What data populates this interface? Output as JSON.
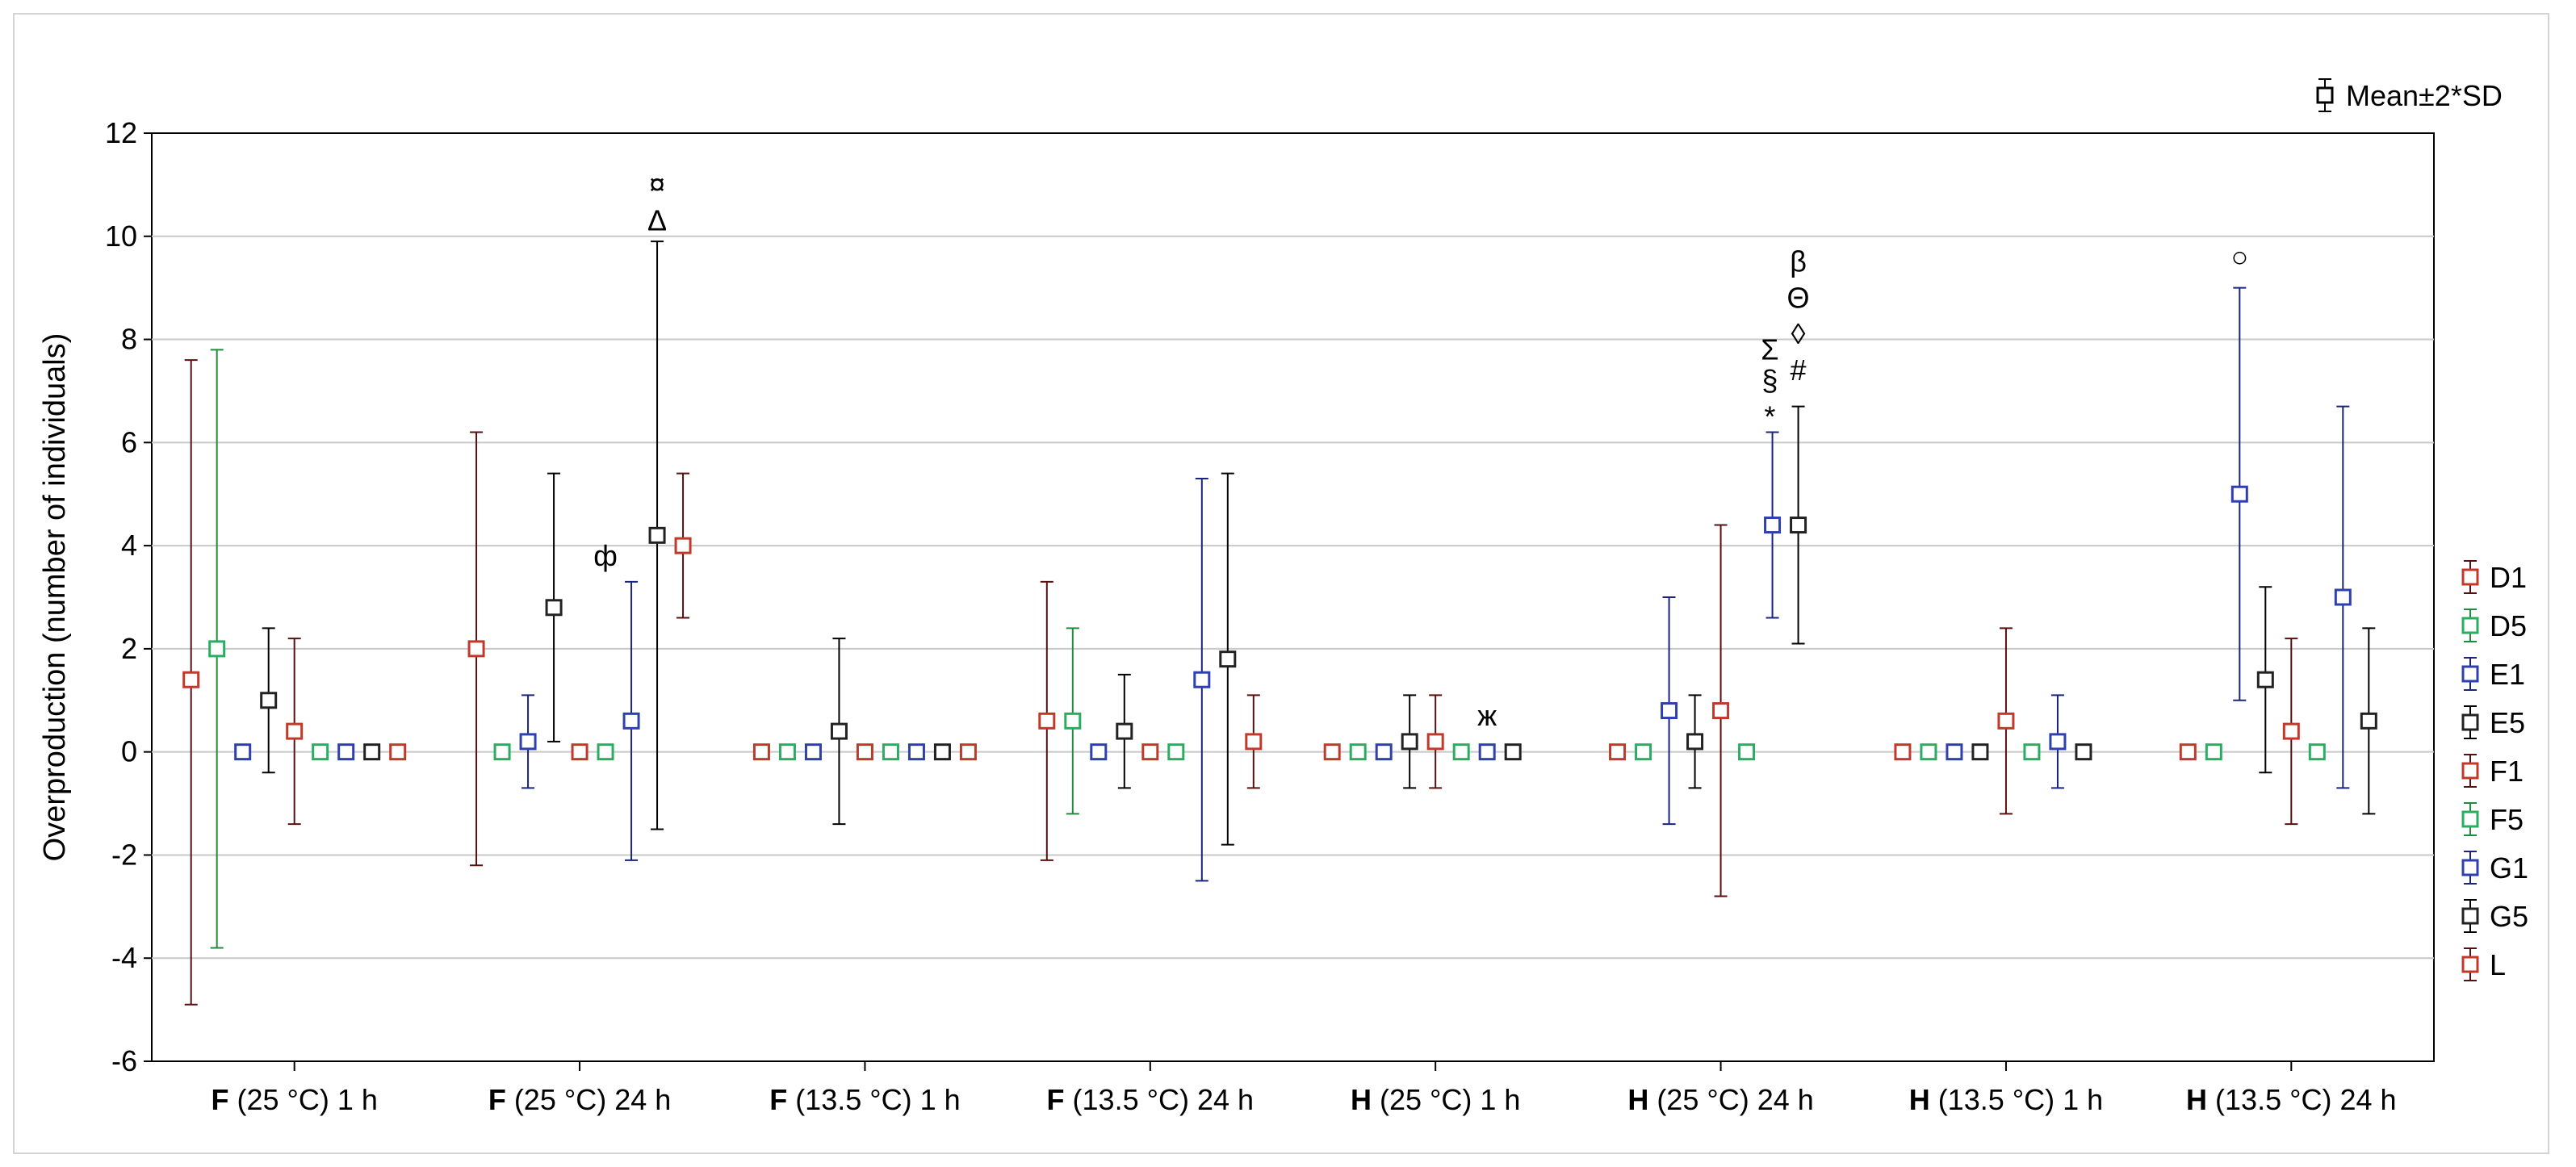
{
  "chart_data": {
    "type": "scatter",
    "title": "",
    "ylabel": "Overproduction (number of individuals)",
    "xlabel": "",
    "ylim": [
      -6,
      12
    ],
    "yticks": [
      -6,
      -4,
      -2,
      0,
      2,
      4,
      6,
      8,
      10,
      12
    ],
    "grid": "horizontal",
    "errorbar_label": "Mean±2*SD",
    "legend_placement": "right",
    "categories": [
      {
        "bold": "F",
        "rest": " (25 °C) 1 h"
      },
      {
        "bold": "F",
        "rest": " (25 °C) 24 h"
      },
      {
        "bold": "F",
        "rest": " (13.5 °C) 1 h"
      },
      {
        "bold": "F",
        "rest": " (13.5 °C) 24 h"
      },
      {
        "bold": "H",
        "rest": " (25 °C) 1 h"
      },
      {
        "bold": "H",
        "rest": " (25 °C) 24 h"
      },
      {
        "bold": "H",
        "rest": " (13.5 °C) 1 h"
      },
      {
        "bold": "H",
        "rest": " (13.5 °C) 24 h"
      }
    ],
    "series": [
      {
        "name": "D1",
        "color": "#c0392b",
        "bar_color": "#5a0f0f",
        "mean": [
          1.4,
          2.0,
          0,
          0.6,
          0,
          0,
          0,
          0
        ],
        "low": [
          -4.9,
          -2.2,
          null,
          -2.1,
          null,
          null,
          null,
          null
        ],
        "high": [
          7.6,
          6.2,
          null,
          3.3,
          null,
          null,
          null,
          null
        ]
      },
      {
        "name": "D5",
        "color": "#27ae60",
        "bar_color": "#1e8c3a",
        "mean": [
          2.0,
          0,
          0,
          0.6,
          0,
          0,
          0,
          0
        ],
        "low": [
          -3.8,
          null,
          null,
          -1.2,
          null,
          null,
          null,
          null
        ],
        "high": [
          7.8,
          null,
          null,
          2.4,
          null,
          null,
          null,
          null
        ]
      },
      {
        "name": "E1",
        "color": "#2e3fb0",
        "bar_color": "#1a237e",
        "mean": [
          0,
          0.2,
          0,
          0,
          0,
          0.8,
          0,
          5.0
        ],
        "low": [
          null,
          -0.7,
          null,
          null,
          null,
          -1.4,
          null,
          1.0
        ],
        "high": [
          null,
          1.1,
          null,
          null,
          null,
          3.0,
          null,
          9.0
        ]
      },
      {
        "name": "E5",
        "color": "#222222",
        "bar_color": "#000000",
        "mean": [
          1.0,
          2.8,
          0.4,
          0.4,
          0.2,
          0.2,
          0,
          1.4
        ],
        "low": [
          -0.4,
          0.2,
          -1.4,
          -0.7,
          -0.7,
          -0.7,
          null,
          -0.4
        ],
        "high": [
          2.4,
          5.4,
          2.2,
          1.5,
          1.1,
          1.1,
          null,
          3.2
        ]
      },
      {
        "name": "F1",
        "color": "#c0392b",
        "bar_color": "#5a0f0f",
        "mean": [
          0.4,
          0,
          0,
          0,
          0.2,
          0.8,
          0.6,
          0.4
        ],
        "low": [
          -1.4,
          null,
          null,
          null,
          -0.7,
          -2.8,
          -1.2,
          -1.4
        ],
        "high": [
          2.2,
          null,
          null,
          null,
          1.1,
          4.4,
          2.4,
          2.2
        ]
      },
      {
        "name": "F5",
        "color": "#27ae60",
        "bar_color": "#1e8c3a",
        "mean": [
          0,
          0,
          0,
          0,
          0,
          0,
          0,
          0
        ],
        "low": [
          null,
          null,
          null,
          null,
          null,
          null,
          null,
          null
        ],
        "high": [
          null,
          null,
          null,
          null,
          null,
          null,
          null,
          null
        ]
      },
      {
        "name": "G1",
        "color": "#2e3fb0",
        "bar_color": "#1a237e",
        "mean": [
          0,
          0.6,
          0,
          1.4,
          0,
          4.4,
          0.2,
          3.0
        ],
        "low": [
          null,
          -2.1,
          null,
          -2.5,
          null,
          2.6,
          -0.7,
          -0.7
        ],
        "high": [
          null,
          3.3,
          null,
          5.3,
          null,
          6.2,
          1.1,
          6.7
        ]
      },
      {
        "name": "G5",
        "color": "#222222",
        "bar_color": "#000000",
        "mean": [
          0,
          4.2,
          0,
          1.8,
          0,
          4.4,
          0,
          0.6
        ],
        "low": [
          null,
          -1.5,
          null,
          -1.8,
          null,
          2.1,
          null,
          -1.2
        ],
        "high": [
          null,
          9.9,
          null,
          5.4,
          null,
          6.7,
          null,
          2.4
        ]
      },
      {
        "name": "L",
        "color": "#c0392b",
        "bar_color": "#5a0f0f",
        "mean": [
          0,
          4.0,
          0,
          0.2,
          null,
          null,
          null,
          null
        ],
        "low": [
          null,
          2.6,
          null,
          -0.7,
          null,
          null,
          null,
          null
        ],
        "high": [
          null,
          5.4,
          null,
          1.1,
          null,
          null,
          null,
          null
        ]
      }
    ],
    "annotations": [
      {
        "text": "¤",
        "category": 1,
        "series": 7,
        "y": 11.0,
        "dx": 0
      },
      {
        "text": "Δ",
        "category": 1,
        "series": 7,
        "y": 10.3,
        "dx": 0
      },
      {
        "text": "ф",
        "category": 1,
        "series": 6,
        "y": 3.8,
        "dx": -1
      },
      {
        "text": "ж",
        "category": 4,
        "series": 6,
        "y": 0.7,
        "dx": 0
      },
      {
        "text": "β",
        "category": 5,
        "series": 7,
        "y": 9.5,
        "dx": 0
      },
      {
        "text": "Θ",
        "category": 5,
        "series": 7,
        "y": 8.8,
        "dx": 0
      },
      {
        "text": "◊",
        "category": 5,
        "series": 7,
        "y": 8.1,
        "dx": 0
      },
      {
        "text": "#",
        "category": 5,
        "series": 7,
        "y": 7.4,
        "dx": 0
      },
      {
        "text": "Σ",
        "category": 5,
        "series": 6,
        "y": 7.8,
        "dx": -0.1
      },
      {
        "text": "§",
        "category": 5,
        "series": 6,
        "y": 7.2,
        "dx": -0.1
      },
      {
        "text": "*",
        "category": 5,
        "series": 6,
        "y": 6.5,
        "dx": -0.1
      },
      {
        "text": "○",
        "category": 7,
        "series": 2,
        "y": 9.6,
        "dx": 0
      }
    ]
  }
}
